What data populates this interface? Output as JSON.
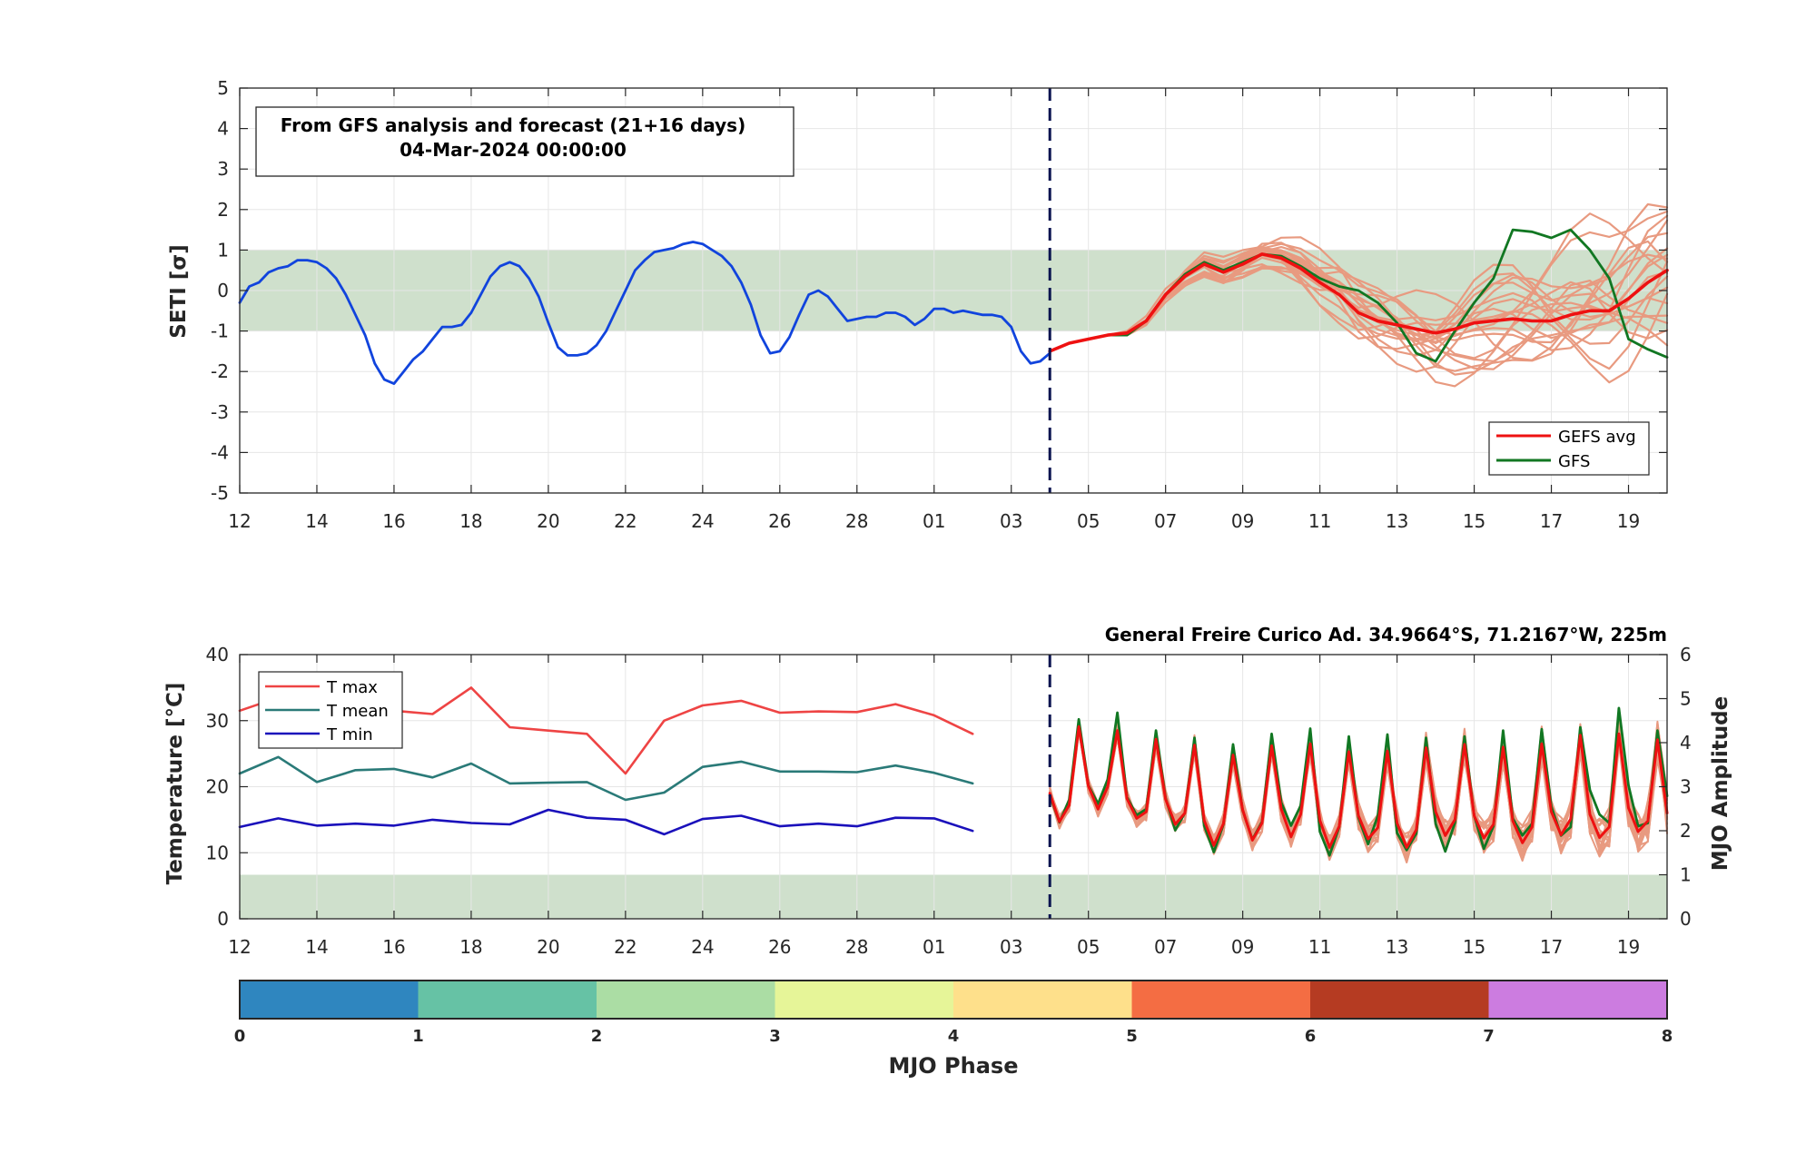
{
  "colors": {
    "analysis": "#1144dd",
    "gefs_avg": "#ee1111",
    "gfs": "#117722",
    "ensemble": "#e89a80",
    "band": "#cfe0cc",
    "tmax": "#ee4444",
    "tmean": "#2a7a78",
    "tmin": "#1a10bb",
    "cutoff": "#0a1450"
  },
  "top": {
    "annotation_line1": "From GFS analysis and forecast (21+16 days)",
    "annotation_line2": "04-Mar-2024 00:00:00",
    "ylabel": "SETI [σ]",
    "legend": [
      "GEFS avg",
      "GFS"
    ]
  },
  "bottom": {
    "station": "General Freire Curico Ad. 34.9664°S, 71.2167°W, 225m",
    "ylabel_left": "Temperature [°C]",
    "ylabel_right": "MJO Amplitude",
    "legend": [
      "T max",
      "T mean",
      "T min"
    ]
  },
  "colorbar": {
    "label": "MJO Phase",
    "ticks": [
      "0",
      "1",
      "2",
      "3",
      "4",
      "5",
      "6",
      "7",
      "8"
    ],
    "colors": [
      "#2f86bf",
      "#66c2a5",
      "#abdda4",
      "#e6f598",
      "#fee08b",
      "#f46d43",
      "#b53b22",
      "#cc7ce0"
    ]
  },
  "chart_data": [
    {
      "type": "line",
      "x_tick_labels": [
        "12",
        "14",
        "16",
        "18",
        "20",
        "22",
        "24",
        "26",
        "28",
        "01",
        "03",
        "05",
        "07",
        "09",
        "11",
        "13",
        "15",
        "17",
        "19"
      ],
      "xlim": [
        0,
        37
      ],
      "ylim": [
        -5,
        5
      ],
      "y_ticks": [
        -5,
        -4,
        -3,
        -2,
        -1,
        0,
        1,
        2,
        3,
        4,
        5
      ],
      "shaded_band": [
        -1,
        1
      ],
      "forecast_start": 21,
      "series": [
        {
          "name": "",
          "role": "analysis",
          "x": [
            0,
            0.25,
            0.5,
            0.75,
            1,
            1.25,
            1.5,
            1.75,
            2,
            2.25,
            2.5,
            2.75,
            3,
            3.25,
            3.5,
            3.75,
            4,
            4.25,
            4.5,
            4.75,
            5,
            5.25,
            5.5,
            5.75,
            6,
            6.25,
            6.5,
            6.75,
            7,
            7.25,
            7.5,
            7.75,
            8,
            8.25,
            8.5,
            8.75,
            9,
            9.25,
            9.5,
            9.75,
            10,
            10.25,
            10.5,
            10.75,
            11,
            11.25,
            11.5,
            11.75,
            12,
            12.25,
            12.5,
            12.75,
            13,
            13.25,
            13.5,
            13.75,
            14,
            14.25,
            14.5,
            14.75,
            15,
            15.25,
            15.5,
            15.75,
            16,
            16.25,
            16.5,
            16.75,
            17,
            17.25,
            17.5,
            17.75,
            18,
            18.25,
            18.5,
            18.75,
            19,
            19.25,
            19.5,
            19.75,
            20,
            20.25,
            20.5,
            20.75,
            21
          ],
          "y": [
            -0.3,
            0.1,
            0.2,
            0.45,
            0.55,
            0.6,
            0.75,
            0.75,
            0.7,
            0.55,
            0.3,
            -0.1,
            -0.6,
            -1.1,
            -1.8,
            -2.2,
            -2.3,
            -2.0,
            -1.7,
            -1.5,
            -1.2,
            -0.9,
            -0.9,
            -0.85,
            -0.55,
            -0.1,
            0.35,
            0.6,
            0.7,
            0.6,
            0.3,
            -0.15,
            -0.8,
            -1.4,
            -1.6,
            -1.6,
            -1.55,
            -1.35,
            -1.0,
            -0.5,
            0.0,
            0.5,
            0.75,
            0.95,
            1.0,
            1.05,
            1.15,
            1.2,
            1.15,
            1.0,
            0.85,
            0.6,
            0.2,
            -0.35,
            -1.1,
            -1.55,
            -1.5,
            -1.15,
            -0.6,
            -0.1,
            0.0,
            -0.15,
            -0.45,
            -0.75,
            -0.7,
            -0.65,
            -0.65,
            -0.55,
            -0.55,
            -0.65,
            -0.85,
            -0.7,
            -0.45,
            -0.45,
            -0.55,
            -0.5,
            -0.55,
            -0.6,
            -0.6,
            -0.65,
            -0.9,
            -1.5,
            -1.8,
            -1.75,
            -1.55
          ]
        },
        {
          "name": "GEFS avg",
          "role": "gefs_avg",
          "x": [
            21,
            21.5,
            22,
            22.5,
            23,
            23.5,
            24,
            24.5,
            25,
            25.5,
            26,
            26.5,
            27,
            27.5,
            28,
            28.5,
            29,
            29.5,
            30,
            30.5,
            31,
            31.5,
            32,
            32.5,
            33,
            33.5,
            34,
            34.5,
            35,
            35.5,
            36,
            36.5,
            37
          ],
          "y": [
            -1.5,
            -1.3,
            -1.2,
            -1.1,
            -1.05,
            -0.75,
            -0.1,
            0.35,
            0.65,
            0.45,
            0.65,
            0.9,
            0.8,
            0.55,
            0.2,
            -0.1,
            -0.55,
            -0.75,
            -0.85,
            -0.95,
            -1.05,
            -0.95,
            -0.8,
            -0.75,
            -0.7,
            -0.75,
            -0.75,
            -0.6,
            -0.5,
            -0.5,
            -0.2,
            0.2,
            0.5
          ]
        },
        {
          "name": "GFS",
          "role": "gfs",
          "x": [
            21,
            21.5,
            22,
            22.5,
            23,
            23.5,
            24,
            24.5,
            25,
            25.5,
            26,
            26.5,
            27,
            27.5,
            28,
            28.5,
            29,
            29.5,
            30,
            30.5,
            31,
            31.5,
            32,
            32.5,
            33,
            33.5,
            34,
            34.5,
            35,
            35.5,
            36,
            36.5,
            37
          ],
          "y": [
            -1.5,
            -1.3,
            -1.2,
            -1.1,
            -1.1,
            -0.75,
            -0.1,
            0.4,
            0.7,
            0.5,
            0.7,
            0.9,
            0.85,
            0.6,
            0.3,
            0.1,
            0.0,
            -0.3,
            -0.8,
            -1.55,
            -1.75,
            -1.0,
            -0.3,
            0.3,
            1.5,
            1.45,
            1.3,
            1.5,
            1.0,
            0.3,
            -1.2,
            -1.45,
            -1.65
          ]
        }
      ],
      "ensemble_members": 20
    },
    {
      "type": "line",
      "x_tick_labels": [
        "12",
        "14",
        "16",
        "18",
        "20",
        "22",
        "24",
        "26",
        "28",
        "01",
        "03",
        "05",
        "07",
        "09",
        "11",
        "13",
        "15",
        "17",
        "19"
      ],
      "xlim": [
        0,
        37
      ],
      "ylim": [
        0,
        40
      ],
      "y_ticks": [
        0,
        10,
        20,
        30,
        40
      ],
      "y2lim": [
        0,
        6
      ],
      "y2_ticks": [
        0,
        1,
        2,
        3,
        4,
        5,
        6
      ],
      "shaded_band_y2": [
        0,
        1
      ],
      "forecast_start": 21,
      "series": [
        {
          "name": "T max",
          "x": [
            0,
            1,
            2,
            3,
            4,
            5,
            6,
            7,
            8,
            9,
            10,
            11,
            12,
            13,
            14,
            15,
            16,
            17,
            18,
            19
          ],
          "y": [
            31.5,
            33.5,
            32.5,
            32,
            31.5,
            31,
            35,
            29,
            28.5,
            28,
            22,
            30,
            32.3,
            33,
            31.2,
            31.4,
            31.3,
            32.5,
            30.8,
            28
          ]
        },
        {
          "name": "T mean",
          "x": [
            0,
            1,
            2,
            3,
            4,
            5,
            6,
            7,
            8,
            9,
            10,
            11,
            12,
            13,
            14,
            15,
            16,
            17,
            18,
            19
          ],
          "y": [
            22,
            24.5,
            20.7,
            22.5,
            22.7,
            21.4,
            23.5,
            20.5,
            20.6,
            20.7,
            18,
            19.1,
            23,
            23.8,
            22.3,
            22.3,
            22.2,
            23.2,
            22.1,
            20.5
          ]
        },
        {
          "name": "T min",
          "x": [
            0,
            1,
            2,
            3,
            4,
            5,
            6,
            7,
            8,
            9,
            10,
            11,
            12,
            13,
            14,
            15,
            16,
            17,
            18,
            19
          ],
          "y": [
            13.9,
            15.2,
            14.1,
            14.4,
            14.1,
            15,
            14.5,
            14.3,
            16.5,
            15.3,
            15,
            12.8,
            15.1,
            15.6,
            14,
            14.4,
            14,
            15.3,
            15.2,
            13.3
          ]
        },
        {
          "name": "",
          "role": "gefs_avg_temp",
          "x": [
            21.0,
            21.25,
            21.5,
            21.75,
            22.0,
            22.25,
            22.5,
            22.75,
            23.0,
            23.25,
            23.5,
            23.75,
            24.0,
            24.25,
            24.5,
            24.75,
            25.0,
            25.25,
            25.5,
            25.75,
            26.0,
            26.25,
            26.5,
            26.75,
            27.0,
            27.25,
            27.5,
            27.75,
            28.0,
            28.25,
            28.5,
            28.75,
            29.0,
            29.25,
            29.5,
            29.75,
            30.0,
            30.25,
            30.5,
            30.75,
            31.0,
            31.25,
            31.5,
            31.75,
            32.0,
            32.25,
            32.5,
            32.75,
            33.0,
            33.25,
            33.5,
            33.75,
            34.0,
            34.25,
            34.5,
            34.75,
            35.0,
            35.25,
            35.5,
            35.75,
            36.0,
            36.25,
            36.5,
            36.75,
            37.0
          ],
          "y": [
            19,
            14.7,
            17.2,
            29.1,
            20.1,
            16.6,
            20.0,
            28.5,
            18.2,
            15.2,
            16.2,
            27.2,
            18.1,
            14.3,
            16.0,
            26.3,
            14.9,
            11.1,
            14.4,
            24.8,
            16.5,
            11.9,
            14.5,
            26.2,
            16.6,
            12.4,
            15.8,
            26.5,
            14.9,
            10.8,
            14.0,
            25.3,
            15.6,
            12.1,
            13.8,
            25.4,
            14.5,
            10.8,
            13.5,
            25.9,
            16.2,
            12.6,
            15.0,
            26.4,
            15.6,
            12.2,
            14.3,
            26.0,
            14.8,
            11.5,
            13.9,
            26.5,
            16.2,
            12.7,
            15.1,
            27.8,
            15.8,
            12.3,
            13.9,
            28.0,
            16.8,
            13.2,
            14.8,
            27.1,
            16.0
          ]
        },
        {
          "name": "",
          "role": "gfs_temp",
          "x": [
            21.0,
            21.25,
            21.5,
            21.75,
            22.0,
            22.25,
            22.5,
            22.75,
            23.0,
            23.25,
            23.5,
            23.75,
            24.0,
            24.25,
            24.5,
            24.75,
            25.0,
            25.25,
            25.5,
            25.75,
            26.0,
            26.25,
            26.5,
            26.75,
            27.0,
            27.25,
            27.5,
            27.75,
            28.0,
            28.25,
            28.5,
            28.75,
            29.0,
            29.25,
            29.5,
            29.75,
            30.0,
            30.25,
            30.5,
            30.75,
            31.0,
            31.25,
            31.5,
            31.75,
            32.0,
            32.25,
            32.5,
            32.75,
            33.0,
            33.25,
            33.5,
            33.75,
            34.0,
            34.25,
            34.5,
            34.75,
            35.0,
            35.25,
            35.5,
            35.75,
            36.0,
            36.25,
            36.5,
            36.75,
            37.0
          ],
          "y": [
            18.7,
            14.6,
            18.0,
            30.2,
            20.2,
            17.4,
            21.1,
            31.2,
            18.4,
            15.7,
            16.6,
            28.5,
            18.3,
            13.4,
            16.0,
            27.4,
            14.1,
            10.1,
            14.3,
            26.4,
            16.4,
            12.0,
            14.7,
            28.0,
            17.6,
            14.1,
            17.1,
            28.8,
            13.2,
            9.6,
            13.9,
            27.6,
            15.3,
            11.3,
            15.6,
            27.9,
            13.0,
            10.4,
            12.9,
            27.4,
            14.4,
            10.2,
            14.5,
            27.6,
            15.6,
            10.6,
            14.0,
            28.5,
            15.2,
            12.6,
            14.4,
            28.7,
            17.0,
            12.6,
            13.9,
            29.0,
            19.5,
            15.8,
            14.5,
            31.9,
            20.2,
            14.0,
            14.5,
            28.5,
            18.6
          ]
        }
      ]
    }
  ]
}
